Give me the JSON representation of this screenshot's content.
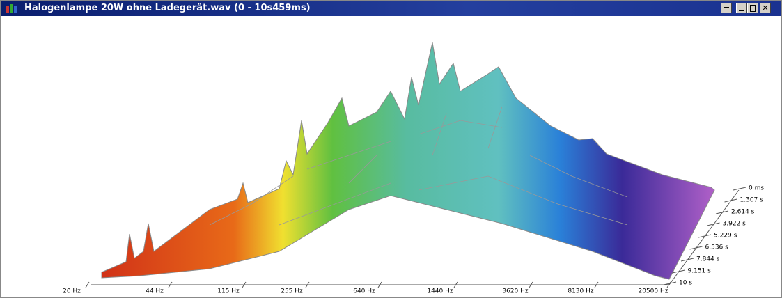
{
  "window": {
    "title": "Halogenlampe 20W ohne Ladegerät.wav (0 - 10s459ms)"
  },
  "frequency_axis": {
    "labels": [
      "20 Hz",
      "44 Hz",
      "115 Hz",
      "255 Hz",
      "640 Hz",
      "1440 Hz",
      "3620 Hz",
      "8130 Hz",
      "20500 Hz"
    ]
  },
  "time_axis": {
    "labels": [
      "0 ms",
      "1.307 s",
      "2.614 s",
      "3.922 s",
      "5.229 s",
      "6.536 s",
      "7.844 s",
      "9.151 s",
      "10 s"
    ]
  }
}
